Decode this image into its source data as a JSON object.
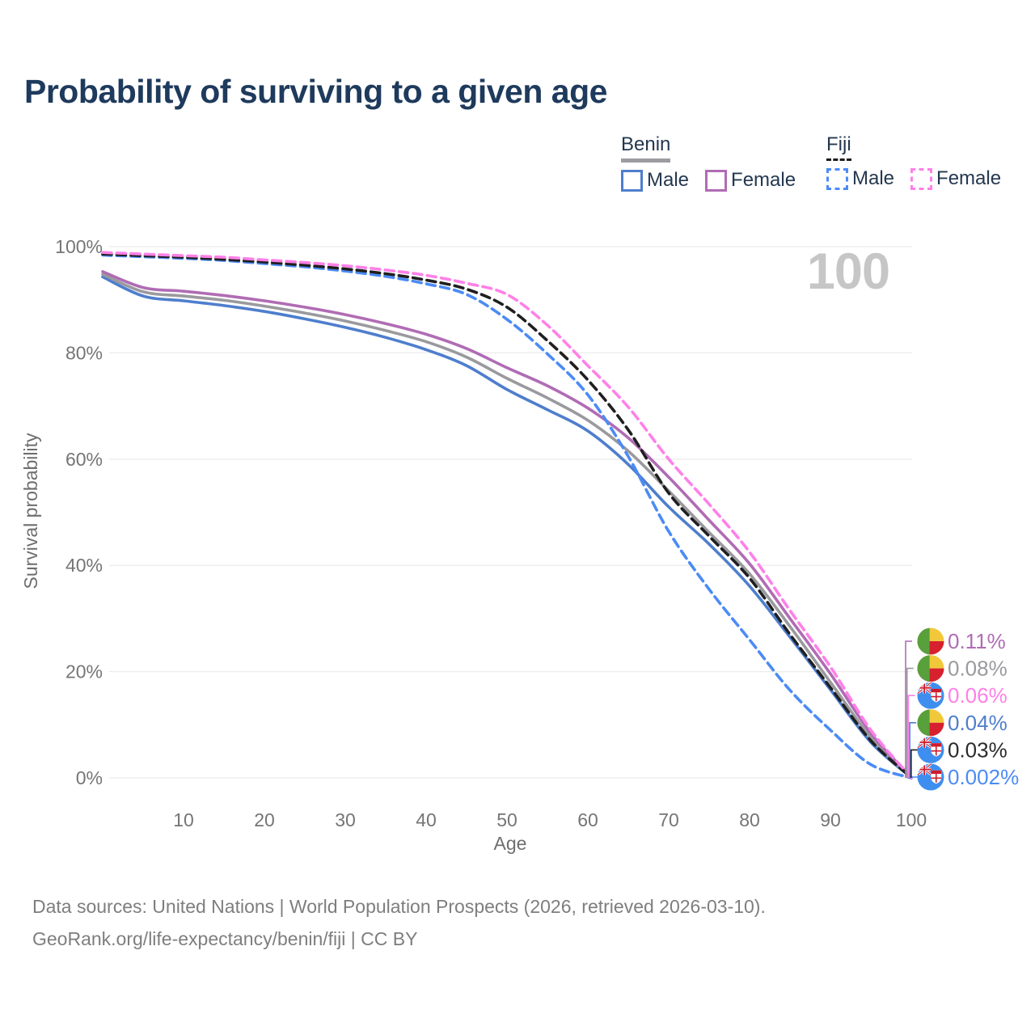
{
  "title": "Probability of surviving to a given age",
  "watermark": "100",
  "legend": {
    "groups": [
      {
        "label": "Benin",
        "line_style": "solid",
        "underline_color": "#9d9da0",
        "items": [
          {
            "label": "Male",
            "color": "#4e7ecd"
          },
          {
            "label": "Female",
            "color": "#b06cb4"
          }
        ]
      },
      {
        "label": "Fiji",
        "line_style": "dashed",
        "underline_color": "#1c1c1c",
        "items": [
          {
            "label": "Male",
            "color": "#4b8bf5"
          },
          {
            "label": "Female",
            "color": "#ff80e8"
          }
        ]
      }
    ]
  },
  "chart_data": {
    "type": "line",
    "title": "Probability of surviving to a given age",
    "xlabel": "Age",
    "ylabel": "Survival probability",
    "xlim": [
      0,
      100
    ],
    "ylim": [
      0,
      100
    ],
    "x_ticks": [
      10,
      20,
      30,
      40,
      50,
      60,
      70,
      80,
      90,
      100
    ],
    "y_ticks": [
      0,
      20,
      40,
      60,
      80,
      100
    ],
    "y_tick_labels": [
      "0%",
      "20%",
      "40%",
      "60%",
      "80%",
      "100%"
    ],
    "grid": "horizontal",
    "legend_position": "top-right",
    "x": [
      0,
      5,
      10,
      15,
      20,
      25,
      30,
      35,
      40,
      45,
      50,
      55,
      60,
      65,
      70,
      75,
      80,
      85,
      90,
      95,
      100
    ],
    "series": [
      {
        "name": "Benin Male",
        "country": "Benin",
        "sex": "Male",
        "color": "#4e7ecd",
        "dash": "solid",
        "flag": "benin",
        "end_label": "0.04%",
        "label_color": "#4e7ecd",
        "slot": 3,
        "values": [
          94.3,
          90.7,
          89.8,
          88.9,
          87.8,
          86.4,
          84.8,
          82.9,
          80.6,
          77.6,
          73.1,
          69.3,
          65.3,
          59.0,
          51.0,
          44.0,
          36.1,
          26.5,
          16.6,
          6.7,
          0.04
        ]
      },
      {
        "name": "Benin Both sexes",
        "country": "Benin",
        "sex": "Both",
        "color": "#9a9a9e",
        "dash": "solid",
        "flag": "benin",
        "end_label": "0.08%",
        "label_color": "#9a9a9e",
        "slot": 1,
        "values": [
          94.8,
          91.5,
          90.7,
          89.9,
          88.8,
          87.5,
          86.0,
          84.2,
          82.1,
          79.2,
          75.2,
          71.5,
          67.3,
          61.5,
          54.0,
          46.2,
          38.4,
          28.5,
          18.0,
          7.6,
          0.08
        ]
      },
      {
        "name": "Benin Female",
        "country": "Benin",
        "sex": "Female",
        "color": "#b06cb4",
        "dash": "solid",
        "flag": "benin",
        "end_label": "0.11%",
        "label_color": "#b06cb4",
        "slot": 0,
        "values": [
          95.3,
          92.3,
          91.6,
          90.8,
          89.8,
          88.6,
          87.2,
          85.5,
          83.5,
          80.8,
          77.2,
          73.8,
          69.6,
          64.0,
          56.6,
          48.5,
          40.3,
          30.0,
          19.6,
          8.4,
          0.11
        ]
      },
      {
        "name": "Fiji Male",
        "country": "Fiji",
        "sex": "Male",
        "color": "#4b8bf5",
        "dash": "dashed",
        "flag": "fiji",
        "end_label": "0.002%",
        "label_color": "#4b8bf5",
        "slot": 5,
        "values": [
          98.4,
          98.1,
          97.8,
          97.4,
          96.8,
          96.2,
          95.4,
          94.4,
          93.0,
          91.0,
          86.3,
          79.8,
          72.1,
          60.5,
          46.4,
          35.5,
          26.0,
          16.5,
          9.0,
          2.5,
          0.002
        ]
      },
      {
        "name": "Fiji Both sexes",
        "country": "Fiji",
        "sex": "Both",
        "color": "#1f1f1f",
        "dash": "dashed",
        "flag": "fiji",
        "end_label": "0.03%",
        "label_color": "#2b2b2b",
        "slot": 4,
        "values": [
          98.6,
          98.3,
          98.0,
          97.6,
          97.1,
          96.5,
          95.8,
          94.9,
          93.7,
          92.0,
          88.6,
          82.3,
          74.9,
          65.5,
          53.6,
          45.5,
          37.6,
          27.0,
          17.0,
          7.0,
          0.03
        ]
      },
      {
        "name": "Fiji Female",
        "country": "Fiji",
        "sex": "Female",
        "color": "#ff80e8",
        "dash": "dashed",
        "flag": "fiji",
        "end_label": "0.06%",
        "label_color": "#ff80e8",
        "slot": 2,
        "values": [
          98.9,
          98.6,
          98.3,
          98.0,
          97.5,
          97.0,
          96.4,
          95.6,
          94.6,
          93.1,
          91.0,
          85.2,
          77.6,
          69.8,
          60.0,
          51.5,
          42.5,
          31.5,
          20.9,
          9.0,
          0.06
        ]
      }
    ]
  },
  "flag_colors": {
    "benin_green": "#58a03c",
    "benin_yellow": "#f2c83b",
    "benin_red": "#d7212e",
    "fiji_blue": "#3e8ef0",
    "fiji_red": "#cf1b2b",
    "fiji_white": "#ffffff"
  },
  "footer": {
    "line1": "Data sources: United Nations | World Population Prospects (2026, retrieved 2026-03-10).",
    "line2": "GeoRank.org/life-expectancy/benin/fiji | CC BY"
  }
}
